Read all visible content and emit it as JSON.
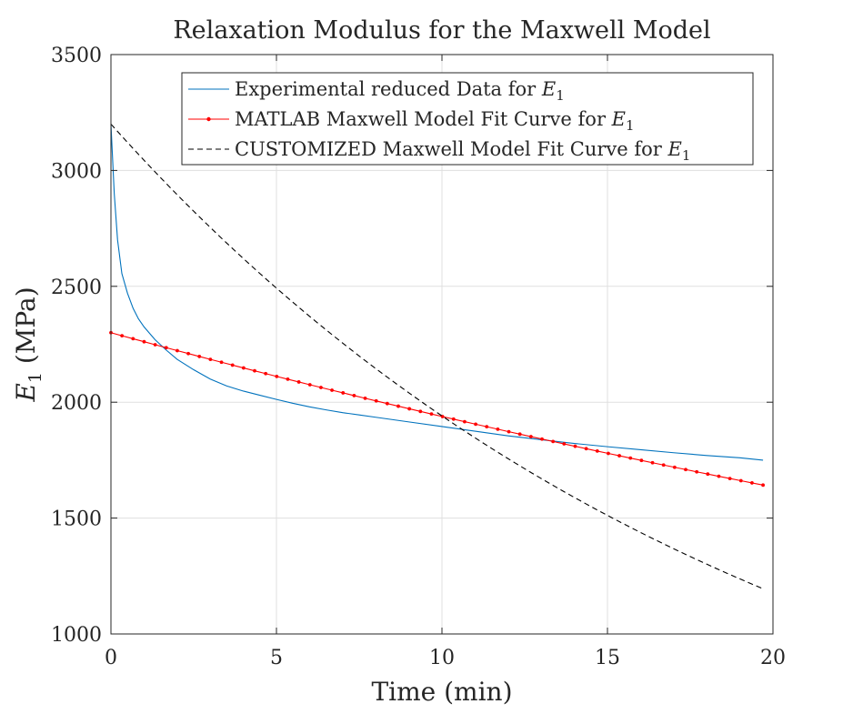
{
  "chart_data": {
    "type": "line",
    "title": "Relaxation Modulus for the Maxwell Model",
    "xlabel": "Time (min)",
    "ylabel": {
      "main": "E",
      "sub": "1",
      "unit": " (MPa)"
    },
    "xlim": [
      0,
      20
    ],
    "ylim": [
      1000,
      3500
    ],
    "xticks": [
      0,
      5,
      10,
      15,
      20
    ],
    "yticks": [
      1000,
      1500,
      2000,
      2500,
      3000,
      3500
    ],
    "grid": true,
    "legend_position": "top-right",
    "series": [
      {
        "name": "Experimental reduced Data for E1",
        "legend": {
          "text": "Experimental reduced Data for ",
          "sym": "E",
          "sub": "1"
        },
        "color": "#0072BD",
        "style": "solid",
        "x": [
          0,
          0.04,
          0.1,
          0.2,
          0.33,
          0.5,
          0.67,
          0.83,
          1.0,
          1.33,
          1.67,
          2.0,
          2.5,
          3.0,
          3.5,
          4.0,
          4.5,
          5.0,
          5.5,
          6.0,
          6.5,
          7.0,
          7.5,
          8.0,
          9.0,
          10.0,
          11.0,
          12.0,
          13.0,
          14.0,
          15.0,
          16.0,
          17.0,
          18.0,
          19.0,
          19.7
        ],
        "y": [
          3200,
          3080,
          2900,
          2700,
          2555,
          2470,
          2405,
          2360,
          2325,
          2270,
          2225,
          2185,
          2140,
          2100,
          2070,
          2048,
          2030,
          2012,
          1995,
          1980,
          1967,
          1955,
          1945,
          1935,
          1915,
          1895,
          1875,
          1855,
          1838,
          1822,
          1808,
          1795,
          1782,
          1770,
          1760,
          1750
        ]
      },
      {
        "name": "MATLAB Maxwell Model Fit Curve for E1",
        "legend": {
          "text": "MATLAB Maxwell Model Fit Curve for ",
          "sym": "E",
          "sub": "1"
        },
        "color": "#ff0000",
        "style": "solid-dots",
        "E0": 2300,
        "tau": 58.5,
        "x_start": 0,
        "x_end": 19.7,
        "n_points": 60
      },
      {
        "name": "CUSTOMIZED Maxwell Model Fit Curve for E1",
        "legend": {
          "text": "CUSTOMIZED Maxwell Model Fit Curve for ",
          "sym": "E",
          "sub": "1"
        },
        "color": "#000000",
        "style": "dashed",
        "E0": 3200,
        "tau": 20,
        "x_start": 0,
        "x_end": 19.7,
        "n_points": 80
      }
    ]
  }
}
